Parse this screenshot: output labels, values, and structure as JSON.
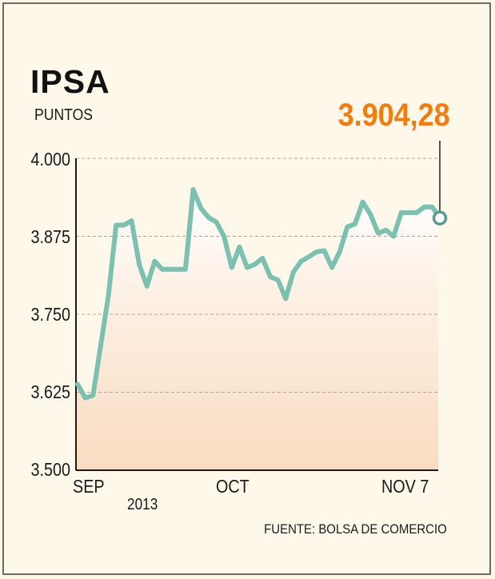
{
  "chart_data": {
    "type": "line",
    "title": "IPSA",
    "subtitle": "PUNTOS",
    "last_value_label": "3.904,28",
    "source": "FUENTE: BOLSA DE COMERCIO",
    "year_label": "2013",
    "x_tick_labels": [
      "SEP",
      "OCT",
      "NOV 7"
    ],
    "y_tick_labels": [
      "4.000",
      "3.875",
      "3.750",
      "3.625",
      "3.500"
    ],
    "y_ticks": [
      4000,
      3875,
      3750,
      3625,
      3500
    ],
    "ylim": [
      3500,
      4000
    ],
    "grid": true,
    "colors": {
      "line": "#7cc0b0",
      "marker_stroke": "#5e9a8f",
      "highlight": "#f07d12"
    },
    "series": [
      {
        "values": [
          3638,
          3616,
          3620,
          3700,
          3780,
          3893,
          3893,
          3900,
          3830,
          3795,
          3835,
          3822,
          3822,
          3822,
          3822,
          3950,
          3920,
          3905,
          3898,
          3875,
          3825,
          3858,
          3825,
          3830,
          3840,
          3810,
          3805,
          3775,
          3818,
          3835,
          3842,
          3850,
          3852,
          3825,
          3850,
          3890,
          3895,
          3930,
          3910,
          3880,
          3885,
          3875,
          3913,
          3913,
          3913,
          3922,
          3922,
          3904.28
        ]
      }
    ]
  }
}
